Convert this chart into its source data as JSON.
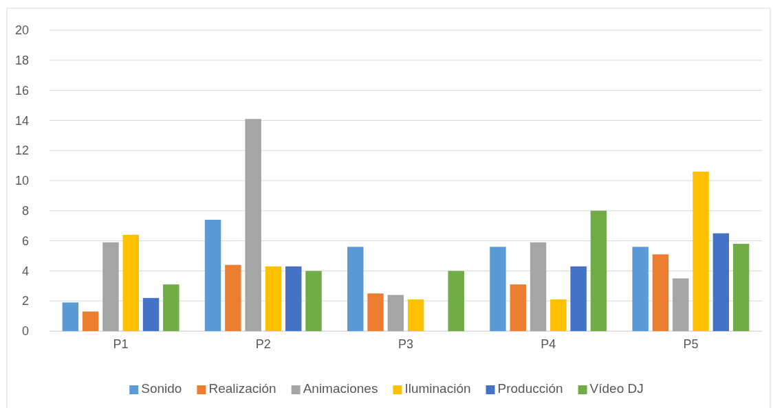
{
  "chart_data": {
    "type": "bar",
    "categories": [
      "P1",
      "P2",
      "P3",
      "P4",
      "P5"
    ],
    "series": [
      {
        "name": "Sonido",
        "color": "#5b9bd5",
        "values": [
          1.9,
          7.4,
          5.6,
          5.6,
          5.6
        ]
      },
      {
        "name": "Realización",
        "color": "#ed7d31",
        "values": [
          1.3,
          4.4,
          2.5,
          3.1,
          5.1
        ]
      },
      {
        "name": "Animaciones",
        "color": "#a5a5a5",
        "values": [
          5.9,
          14.1,
          2.4,
          5.9,
          3.5
        ]
      },
      {
        "name": "Iluminación",
        "color": "#ffc000",
        "values": [
          6.4,
          4.3,
          2.1,
          2.1,
          10.6
        ]
      },
      {
        "name": "Producción",
        "color": "#4472c4",
        "values": [
          2.2,
          4.3,
          null,
          4.3,
          6.5
        ]
      },
      {
        "name": "Vídeo DJ",
        "color": "#70ad47",
        "values": [
          3.1,
          4.0,
          4.0,
          8.0,
          5.8
        ]
      }
    ],
    "ylim": [
      0,
      20
    ],
    "yticks": [
      0,
      2,
      4,
      6,
      8,
      10,
      12,
      14,
      16,
      18,
      20
    ],
    "grid": "y",
    "legend": "bottom"
  }
}
